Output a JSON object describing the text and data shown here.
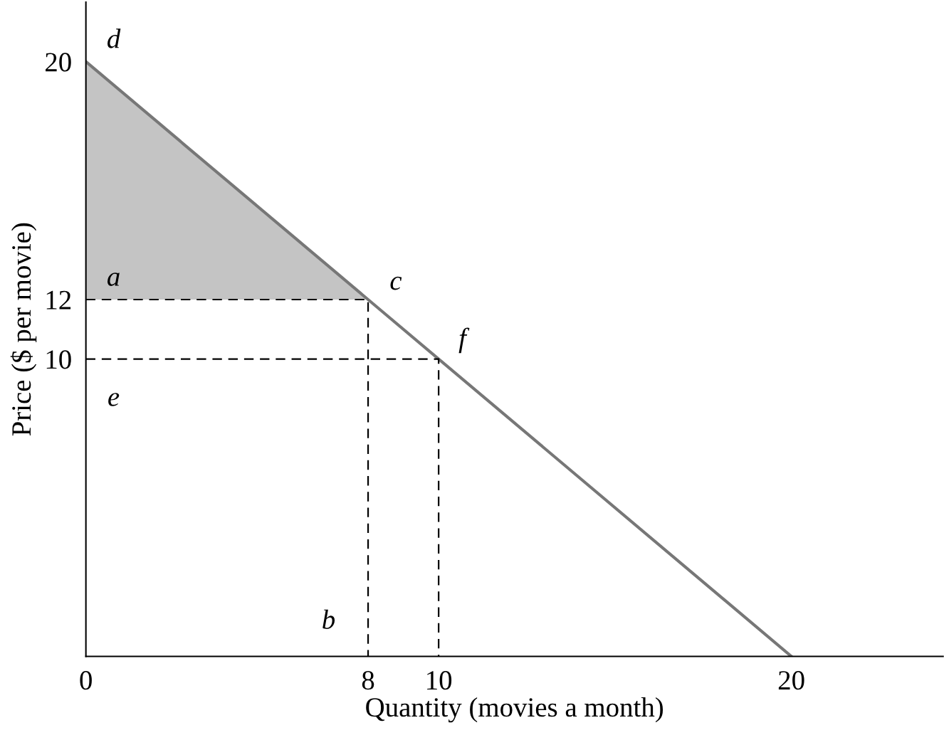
{
  "chart_data": {
    "type": "line",
    "xlabel": "Quantity (movies a month)",
    "ylabel": "Price ($ per movie)",
    "series": [
      {
        "type": "area",
        "color": "#c4c4c4",
        "x": [
          0,
          8,
          0
        ],
        "values": [
          20,
          12,
          12
        ]
      },
      {
        "color": "#777777",
        "x": [
          0,
          20
        ],
        "values": [
          20,
          0
        ]
      },
      {
        "type": "line",
        "color": "#000000",
        "line_style": "dashed",
        "x": [
          0,
          8,
          8
        ],
        "values": [
          12,
          12,
          0
        ]
      },
      {
        "type": "line",
        "color": "#000000",
        "line_style": "dashed",
        "x": [
          0,
          10,
          10
        ],
        "values": [
          10,
          10,
          0
        ]
      }
    ],
    "annotations": [
      {
        "text": "d",
        "x": 0,
        "y": 20
      },
      {
        "text": "a",
        "x": 0,
        "y": 12
      },
      {
        "text": "c",
        "x": 8,
        "y": 12
      },
      {
        "text": "f",
        "x": 10,
        "y": 10
      },
      {
        "text": "e",
        "x": 0,
        "y": 10
      },
      {
        "text": "b",
        "x": 8,
        "y": 0
      }
    ],
    "xlim": [
      0,
      24.3
    ],
    "ylim": [
      0,
      22
    ],
    "xticks": [
      0,
      8,
      10,
      20
    ],
    "yticks": [
      10,
      12,
      20
    ],
    "grid": false,
    "legend": false
  }
}
